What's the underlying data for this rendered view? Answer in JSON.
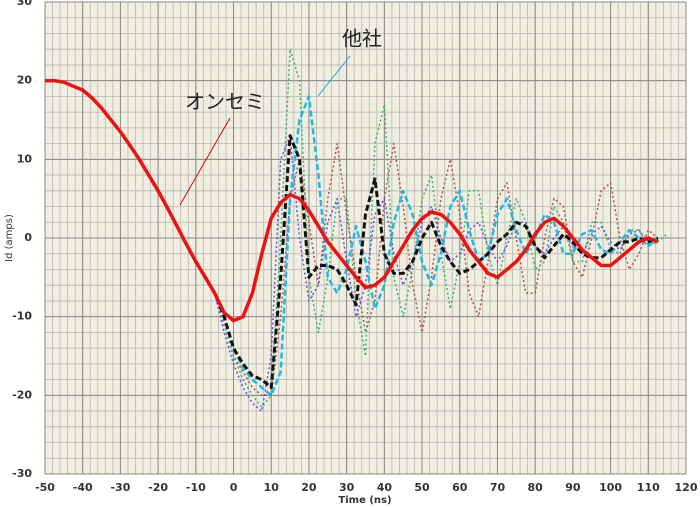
{
  "chart_data": {
    "type": "line",
    "xlabel": "Time (ns)",
    "ylabel": "Id (amps)",
    "xlim": [
      -50,
      120
    ],
    "ylim": [
      -30,
      30
    ],
    "xticks": [
      -50,
      -40,
      -30,
      -20,
      -10,
      0,
      10,
      20,
      30,
      40,
      50,
      60,
      70,
      80,
      90,
      100,
      110,
      120
    ],
    "yticks": [
      -30,
      -20,
      -10,
      0,
      10,
      20,
      30
    ],
    "grid": true,
    "minor_step": 2,
    "annotations": [
      {
        "text": "オンセミ",
        "color": "#e00000"
      },
      {
        "text": "他社",
        "color": "#1aa0e8"
      }
    ],
    "x": [
      -50,
      -47.5,
      -45,
      -42.5,
      -40,
      -37.5,
      -35,
      -32.5,
      -30,
      -27.5,
      -25,
      -22.5,
      -20,
      -17.5,
      -15,
      -12.5,
      -10,
      -7.5,
      -5,
      -2.5,
      0,
      2.5,
      5,
      7.5,
      10,
      12.5,
      15,
      17.5,
      20,
      22.5,
      25,
      27.5,
      30,
      32.5,
      35,
      37.5,
      40,
      42.5,
      45,
      47.5,
      50,
      52.5,
      55,
      57.5,
      60,
      62.5,
      65,
      67.5,
      70,
      72.5,
      75,
      77.5,
      80,
      82.5,
      85,
      87.5,
      90,
      92.5,
      95,
      97.5,
      100,
      102.5,
      105,
      107.5,
      110,
      112.5,
      115
    ],
    "series": [
      {
        "color": "#b5524a",
        "style": "dotted",
        "width": 1.5,
        "values": [
          20,
          20,
          19.8,
          19.3,
          18.8,
          17.8,
          16.5,
          15,
          13.5,
          11.8,
          10,
          8,
          6,
          3.8,
          1.5,
          -0.8,
          -3,
          -5,
          -7,
          -11,
          -15,
          -17,
          -19,
          -20,
          -20,
          -10,
          5,
          10,
          2,
          -6,
          5,
          12,
          3,
          -5,
          -12,
          -8,
          5,
          12,
          4,
          -6,
          -12,
          -5,
          5,
          10,
          3,
          -7,
          -10,
          -3,
          5,
          7,
          0,
          -7,
          -7,
          0,
          5,
          4,
          -3,
          -5,
          0,
          6,
          7,
          0,
          -4,
          -2,
          1,
          0,
          null
        ]
      },
      {
        "color": "#3cb07a",
        "style": "dotted",
        "width": 1.5,
        "values": [
          20,
          20,
          19.8,
          19.3,
          18.8,
          17.8,
          16.5,
          15,
          13.5,
          11.8,
          10,
          8,
          6,
          3.8,
          1.5,
          -0.8,
          -3,
          -5,
          -7,
          -11,
          -15,
          -18,
          -20,
          -21.5,
          -20,
          0,
          24,
          20,
          -5,
          -12,
          -5,
          5,
          5,
          -8,
          -15,
          12,
          17,
          -5,
          -10,
          -4,
          5,
          8,
          -2,
          -9,
          -3,
          6,
          6,
          -2,
          -6,
          0,
          5,
          2,
          -4,
          -3,
          4,
          2,
          -3,
          -3,
          2,
          2,
          -1.5,
          -2,
          1,
          1,
          -1,
          -0.5,
          0.5
        ]
      },
      {
        "color": "#6a4ee0",
        "style": "dotted",
        "width": 1.5,
        "values": [
          20,
          20,
          19.8,
          19.3,
          18.8,
          17.8,
          16.5,
          15,
          13.5,
          11.8,
          10,
          8,
          6,
          3.8,
          1.5,
          -0.8,
          -3,
          -5,
          -7,
          -12,
          -16,
          -19,
          -21,
          -22,
          -15,
          10,
          13,
          0,
          -8,
          -6,
          2,
          5,
          -3,
          -10,
          -6,
          3,
          5,
          -2,
          -6,
          -3,
          2,
          4,
          0,
          -3,
          -2,
          1,
          2,
          -1,
          -3,
          -1,
          2,
          2,
          -1,
          -2,
          0,
          1.5,
          -1,
          -2,
          0.5,
          1.5,
          -0.5,
          -1.5,
          0.5,
          1,
          -0.5,
          0,
          null
        ]
      },
      {
        "color": "#1fb8e8",
        "style": "dashed",
        "width": 2.5,
        "values": [
          20,
          20,
          19.8,
          19.3,
          18.8,
          17.8,
          16.5,
          15,
          13.5,
          11.8,
          10,
          8,
          6,
          3.8,
          1.5,
          -0.8,
          -3,
          -5,
          -7,
          -10,
          -14,
          -16.5,
          -18,
          -19,
          -20,
          -17,
          5,
          15,
          18,
          8,
          -5,
          -7,
          -4,
          1.5,
          -3,
          -9,
          -6,
          2,
          6,
          3,
          -3,
          -6,
          -2,
          4,
          6,
          1,
          -3,
          -2,
          3,
          5,
          1,
          -2,
          0,
          3,
          2,
          -2,
          -2,
          0.5,
          1,
          -1.5,
          -2,
          -0.5,
          1,
          0,
          -1,
          0,
          null
        ]
      },
      {
        "color": "#111111",
        "style": "dashed",
        "width": 3,
        "values": [
          20,
          20,
          19.8,
          19.3,
          18.8,
          17.8,
          16.5,
          15,
          13.5,
          11.8,
          10,
          8,
          6,
          3.8,
          1.5,
          -0.8,
          -3,
          -5,
          -7,
          -10,
          -14,
          -16,
          -17.5,
          -18,
          -19,
          -5,
          13,
          10,
          -5,
          -3.5,
          -3.5,
          -4,
          -6,
          -8.5,
          3,
          7.5,
          -2,
          -4.5,
          -4.5,
          -3,
          0,
          2,
          -1,
          -3,
          -4.5,
          -4,
          -3,
          -2,
          -0.5,
          0.5,
          2,
          1.5,
          -1,
          -2.5,
          -1,
          0.5,
          -0.5,
          -2,
          -2.5,
          -2.5,
          -1.5,
          -0.5,
          -0.5,
          0,
          -0.5,
          0,
          null
        ]
      },
      {
        "color": "#ee1111",
        "style": "solid",
        "width": 3.5,
        "values": [
          20,
          20,
          19.8,
          19.3,
          18.8,
          17.8,
          16.5,
          15,
          13.5,
          11.8,
          10,
          8,
          6,
          3.8,
          1.5,
          -0.8,
          -3,
          -5,
          -7,
          -9.5,
          -10.5,
          -10,
          -7,
          -2,
          2.5,
          4.5,
          5.5,
          5,
          3.5,
          1.5,
          -0.5,
          -2,
          -3.5,
          -5,
          -6.3,
          -6,
          -5,
          -3,
          -1,
          1,
          2.5,
          3.3,
          3,
          2,
          0.5,
          -1.5,
          -3,
          -4.5,
          -5,
          -4,
          -3,
          -1.5,
          0.5,
          2,
          2.5,
          1.5,
          0,
          -1.5,
          -2.5,
          -3.5,
          -3.5,
          -2.5,
          -1.5,
          -0.5,
          0,
          -0.5,
          null
        ]
      }
    ]
  }
}
